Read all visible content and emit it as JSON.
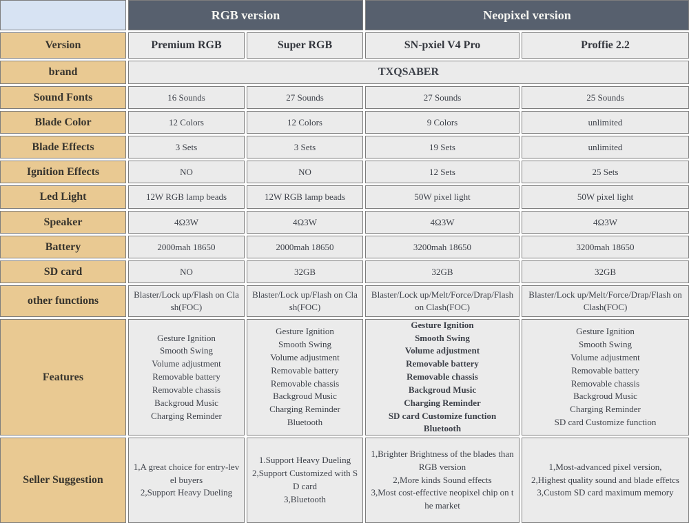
{
  "colors": {
    "header_bg": "#57606e",
    "header_text": "#f4f4f0",
    "label_bg": "#e9c992",
    "corner_bg": "#d7e3f3",
    "cell_bg": "#ebebeb",
    "border": "#7d7d7d"
  },
  "header": {
    "groups": [
      {
        "label": "RGB version"
      },
      {
        "label": "Neopixel version"
      }
    ]
  },
  "version_row": {
    "label": "Version",
    "values": [
      "Premium RGB",
      "Super RGB",
      "SN-pxiel V4 Pro",
      "Proffie 2.2"
    ]
  },
  "brand_row": {
    "label": "brand",
    "value": "TXQSABER"
  },
  "spec_rows": [
    {
      "label": "Sound Fonts",
      "values": [
        "16 Sounds",
        "27 Sounds",
        "27 Sounds",
        "25 Sounds"
      ]
    },
    {
      "label": "Blade Color",
      "values": [
        "12 Colors",
        "12 Colors",
        "9 Colors",
        "unlimited"
      ]
    },
    {
      "label": "Blade Effects",
      "values": [
        "3 Sets",
        "3 Sets",
        "19 Sets",
        "unlimited"
      ]
    },
    {
      "label": "Ignition Effects",
      "values": [
        "NO",
        "NO",
        "12 Sets",
        "25 Sets"
      ]
    },
    {
      "label": "Led Light",
      "values": [
        "12W RGB lamp beads",
        "12W RGB lamp beads",
        "50W pixel light",
        "50W pixel light"
      ]
    },
    {
      "label": "Speaker",
      "values": [
        "4Ω3W",
        "4Ω3W",
        "4Ω3W",
        "4Ω3W"
      ]
    },
    {
      "label": "Battery",
      "values": [
        "2000mah 18650",
        "2000mah 18650",
        "3200mah 18650",
        "3200mah 18650"
      ]
    },
    {
      "label": "SD card",
      "values": [
        "NO",
        "32GB",
        "32GB",
        "32GB"
      ]
    },
    {
      "label": "other functions",
      "values": [
        "Blaster/Lock up/Flash on Clash(FOC)",
        "Blaster/Lock up/Flash on Clash(FOC)",
        "Blaster/Lock up/Melt/Force/Drap/Flash on Clash(FOC)",
        "Blaster/Lock up/Melt/Force/Drap/Flash on Clash(FOC)"
      ]
    }
  ],
  "features_row": {
    "label": "Features",
    "values": [
      [
        "Gesture Ignition",
        "Smooth Swing",
        "Volume adjustment",
        "Removable battery",
        "Removable chassis",
        "Backgroud Music",
        "Charging Reminder"
      ],
      [
        "Gesture Ignition",
        "Smooth Swing",
        "Volume adjustment",
        "Removable battery",
        "Removable chassis",
        "Backgroud Music",
        "Charging Reminder",
        "Bluetooth"
      ],
      [
        "Gesture Ignition",
        "Smooth Swing",
        "Volume adjustment",
        "Removable battery",
        "Removable chassis",
        "Backgroud Music",
        "Charging Reminder",
        "SD card Customize function",
        "Bluetooth"
      ],
      [
        "Gesture Ignition",
        "Smooth Swing",
        "Volume adjustment",
        "Removable battery",
        "Removable chassis",
        "Backgroud Music",
        "Charging Reminder",
        "SD card Customize function"
      ]
    ]
  },
  "seller_row": {
    "label": "Seller Suggestion",
    "values": [
      [
        "1,A great choice for entry-level buyers",
        "2,Support Heavy Dueling"
      ],
      [
        "1.Support Heavy Dueling",
        "2,Support Customized with SD card",
        "3,Bluetooth"
      ],
      [
        "1,Brighter Brightness of the blades than RGB version",
        "2,More kinds Sound effects",
        "3,Most cost-effective neopixel chip on the market"
      ],
      [
        "1,Most-advanced pixel version,",
        "2,Highest quality sound and blade effetcs",
        "3,Custom SD card maximum memory"
      ]
    ]
  },
  "chart_data": {
    "type": "table",
    "title": "TXQSABER lightsaber version comparison",
    "column_groups": [
      "RGB version",
      "RGB version",
      "Neopixel version",
      "Neopixel version"
    ],
    "columns": [
      "Version",
      "Premium RGB",
      "Super RGB",
      "SN-pxiel V4 Pro",
      "Proffie 2.2"
    ],
    "rows": [
      [
        "brand",
        "TXQSABER",
        "TXQSABER",
        "TXQSABER",
        "TXQSABER"
      ],
      [
        "Sound Fonts",
        "16 Sounds",
        "27 Sounds",
        "27 Sounds",
        "25 Sounds"
      ],
      [
        "Blade Color",
        "12 Colors",
        "12 Colors",
        "9 Colors",
        "unlimited"
      ],
      [
        "Blade Effects",
        "3 Sets",
        "3 Sets",
        "19 Sets",
        "unlimited"
      ],
      [
        "Ignition Effects",
        "NO",
        "NO",
        "12 Sets",
        "25 Sets"
      ],
      [
        "Led Light",
        "12W RGB lamp beads",
        "12W RGB lamp beads",
        "50W pixel light",
        "50W pixel light"
      ],
      [
        "Speaker",
        "4Ω3W",
        "4Ω3W",
        "4Ω3W",
        "4Ω3W"
      ],
      [
        "Battery",
        "2000mah 18650",
        "2000mah 18650",
        "3200mah 18650",
        "3200mah 18650"
      ],
      [
        "SD card",
        "NO",
        "32GB",
        "32GB",
        "32GB"
      ],
      [
        "other functions",
        "Blaster/Lock up/Flash on Clash(FOC)",
        "Blaster/Lock up/Flash on Clash(FOC)",
        "Blaster/Lock up/Melt/Force/Drap/Flash on Clash(FOC)",
        "Blaster/Lock up/Melt/Force/Drap/Flash on Clash(FOC)"
      ],
      [
        "Features",
        "Gesture Ignition; Smooth Swing; Volume adjustment; Removable battery; Removable chassis; Backgroud Music; Charging Reminder",
        "Gesture Ignition; Smooth Swing; Volume adjustment; Removable battery; Removable chassis; Backgroud Music; Charging Reminder; Bluetooth",
        "Gesture Ignition; Smooth Swing; Volume adjustment; Removable battery; Removable chassis; Backgroud Music; Charging Reminder; SD card Customize function; Bluetooth",
        "Gesture Ignition; Smooth Swing; Volume adjustment; Removable battery; Removable chassis; Backgroud Music; Charging Reminder; SD card Customize function"
      ],
      [
        "Seller Suggestion",
        "1,A great choice for entry-level buyers 2,Support Heavy Dueling",
        "1.Support Heavy Dueling 2,Support Customized with SD card 3,Bluetooth",
        "1,Brighter Brightness of the blades than RGB version 2,More kinds Sound effects 3,Most cost-effective neopixel chip on the market",
        "1,Most-advanced pixel version, 2,Highest quality sound and blade effetcs 3,Custom SD card maximum memory"
      ]
    ]
  }
}
